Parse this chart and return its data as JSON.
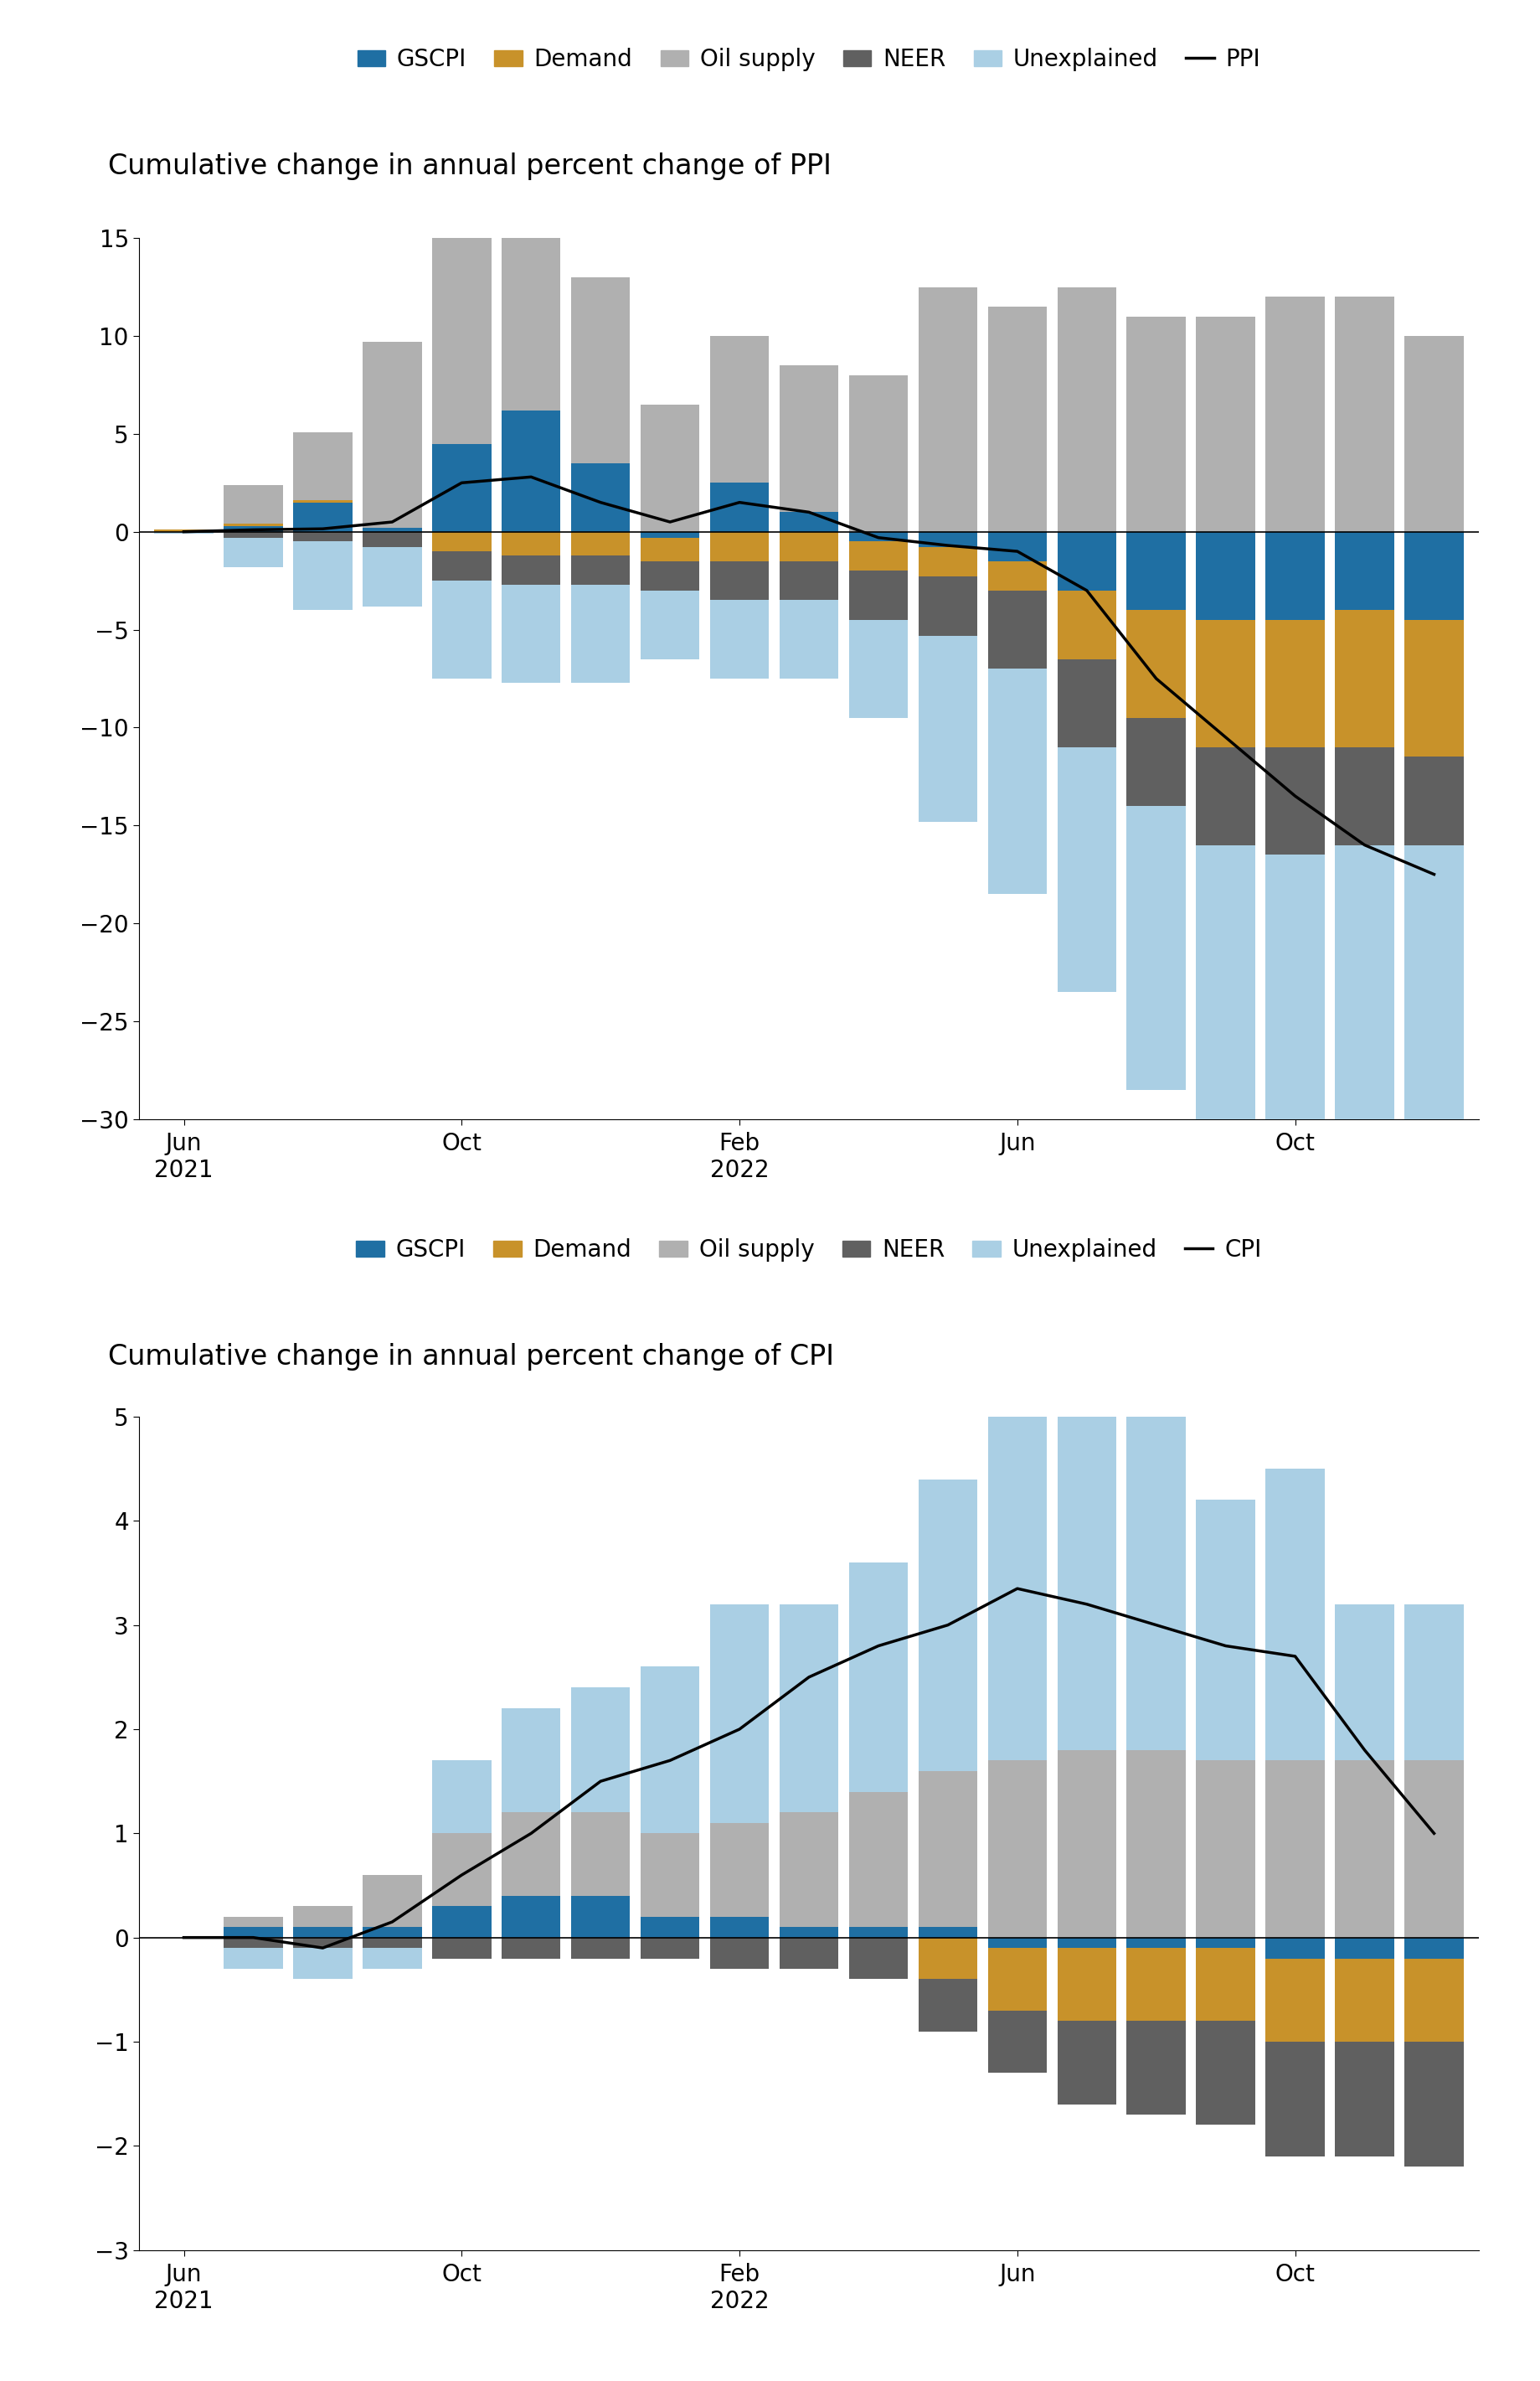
{
  "colors": {
    "GSCPI": "#1f6fa3",
    "Demand": "#c8922a",
    "Oil_supply": "#b0b0b0",
    "NEER": "#606060",
    "Unexplained": "#aacfe4"
  },
  "line_color": "#000000",
  "ppi": {
    "title": "Cumulative change in annual percent change of PPI",
    "line_label": "PPI",
    "ylim": [
      -30,
      15
    ],
    "yticks": [
      -30,
      -25,
      -20,
      -15,
      -10,
      -5,
      0,
      5,
      10,
      15
    ],
    "n_months": 19,
    "xtick_positions": [
      0,
      4,
      8,
      12,
      16
    ],
    "xtick_labels": [
      "Jun\n2021",
      "Oct",
      "Feb\n2022",
      "Jun",
      "Oct"
    ],
    "GSCPI": [
      0.0,
      0.3,
      1.5,
      0.2,
      4.5,
      6.2,
      3.5,
      -0.3,
      2.5,
      1.0,
      -0.5,
      -0.8,
      -1.5,
      -3.0,
      -4.0,
      -4.5,
      -4.5,
      -4.0,
      -4.5
    ],
    "Demand": [
      0.1,
      0.1,
      0.1,
      0.0,
      -1.0,
      -1.2,
      -1.2,
      -1.2,
      -1.5,
      -1.5,
      -1.5,
      -1.5,
      -1.5,
      -3.5,
      -5.5,
      -6.5,
      -6.5,
      -7.0,
      -7.0
    ],
    "Oil_supply": [
      0.0,
      2.0,
      3.5,
      9.5,
      10.5,
      10.5,
      9.5,
      6.5,
      7.5,
      7.5,
      8.0,
      12.5,
      11.5,
      12.5,
      11.0,
      11.0,
      12.0,
      12.0,
      10.0
    ],
    "NEER": [
      0.0,
      -0.3,
      -0.5,
      -0.8,
      -1.5,
      -1.5,
      -1.5,
      -1.5,
      -2.0,
      -2.0,
      -2.5,
      -3.0,
      -4.0,
      -4.5,
      -4.5,
      -5.0,
      -5.5,
      -5.0,
      -4.5
    ],
    "Unexplained": [
      -0.1,
      -1.5,
      -3.5,
      -3.0,
      -5.0,
      -5.0,
      -5.0,
      -3.5,
      -4.0,
      -4.0,
      -5.0,
      -9.5,
      -11.5,
      -12.5,
      -14.5,
      -20.5,
      -25.5,
      -25.0,
      -22.0
    ],
    "line": [
      0.0,
      0.1,
      0.15,
      0.5,
      2.5,
      2.8,
      1.5,
      0.5,
      1.5,
      1.0,
      -0.3,
      -0.7,
      -1.0,
      -3.0,
      -7.5,
      -10.5,
      -13.5,
      -16.0,
      -17.5
    ]
  },
  "cpi": {
    "title": "Cumulative change in annual percent change of CPI",
    "line_label": "CPI",
    "ylim": [
      -3,
      5
    ],
    "yticks": [
      -3,
      -2,
      -1,
      0,
      1,
      2,
      3,
      4,
      5
    ],
    "n_months": 19,
    "xtick_positions": [
      0,
      4,
      8,
      12,
      16
    ],
    "xtick_labels": [
      "Jun\n2021",
      "Oct",
      "Feb\n2022",
      "Jun",
      "Oct"
    ],
    "GSCPI": [
      0.0,
      0.1,
      0.1,
      0.1,
      0.3,
      0.4,
      0.4,
      0.2,
      0.2,
      0.1,
      0.1,
      0.1,
      -0.1,
      -0.1,
      -0.1,
      -0.1,
      -0.2,
      -0.2,
      -0.2
    ],
    "Demand": [
      0.0,
      0.0,
      0.0,
      0.0,
      0.0,
      0.0,
      0.0,
      0.0,
      0.0,
      0.0,
      0.0,
      -0.4,
      -0.6,
      -0.7,
      -0.7,
      -0.7,
      -0.8,
      -0.8,
      -0.8
    ],
    "Oil_supply": [
      0.0,
      0.1,
      0.2,
      0.5,
      0.7,
      0.8,
      0.8,
      0.8,
      0.9,
      1.1,
      1.3,
      1.5,
      1.7,
      1.8,
      1.8,
      1.7,
      1.7,
      1.7,
      1.7
    ],
    "NEER": [
      0.0,
      -0.1,
      -0.1,
      -0.1,
      -0.2,
      -0.2,
      -0.2,
      -0.2,
      -0.3,
      -0.3,
      -0.4,
      -0.5,
      -0.6,
      -0.8,
      -0.9,
      -1.0,
      -1.1,
      -1.1,
      -1.2
    ],
    "Unexplained": [
      0.0,
      -0.2,
      -0.3,
      -0.2,
      0.7,
      1.0,
      1.2,
      1.6,
      2.1,
      2.0,
      2.2,
      2.8,
      3.5,
      3.3,
      3.2,
      2.5,
      2.8,
      1.5,
      1.5
    ],
    "line": [
      0.0,
      0.0,
      -0.1,
      0.15,
      0.6,
      1.0,
      1.5,
      1.7,
      2.0,
      2.5,
      2.8,
      3.0,
      3.35,
      3.2,
      3.0,
      2.8,
      2.7,
      1.8,
      1.0
    ]
  },
  "legend_fontsize": 20,
  "title_fontsize": 24,
  "tick_fontsize": 20,
  "bar_width": 0.85
}
